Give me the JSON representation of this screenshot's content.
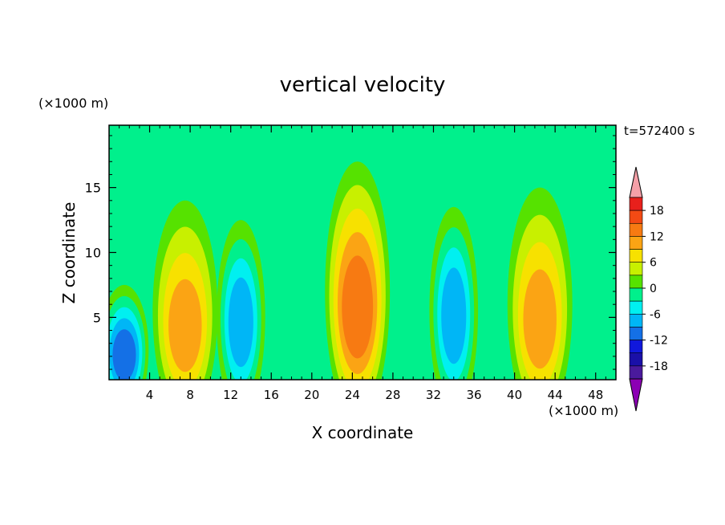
{
  "chart_data": {
    "type": "heatmap",
    "title": "vertical velocity",
    "xlabel": "X coordinate",
    "ylabel": "Z coordinate",
    "x_unit": "(×1000 m)",
    "y_unit": "(×1000 m)",
    "time_label": "t=572400 s",
    "xlim": [
      0,
      50
    ],
    "ylim": [
      0.2,
      19.8
    ],
    "x_ticks": [
      4,
      8,
      12,
      16,
      20,
      24,
      28,
      32,
      36,
      40,
      44,
      48
    ],
    "y_ticks": [
      5,
      10,
      15
    ],
    "grid": false,
    "colorbar": {
      "labels": [
        "18",
        "12",
        "6",
        "0",
        "-6",
        "-12",
        "-18"
      ],
      "levels": [
        21,
        18,
        15,
        12,
        9,
        6,
        3,
        0,
        -3,
        -6,
        -9,
        -12,
        -15,
        -18,
        -21
      ],
      "colors": [
        "#f5a0a8",
        "#e8201c",
        "#f34a14",
        "#f77a12",
        "#fba414",
        "#f7e100",
        "#c8f000",
        "#56e200",
        "#00f08c",
        "#00f0f0",
        "#00b6f6",
        "#1470e6",
        "#1018dc",
        "#1a10a8",
        "#4a1a9c",
        "#8c00b4"
      ]
    },
    "features": [
      {
        "kind": "updraft",
        "x": 7.5,
        "z": 4,
        "peak": 9
      },
      {
        "kind": "downdraft",
        "x": 1.5,
        "z": 2,
        "peak": -12
      },
      {
        "kind": "downdraft",
        "x": 13,
        "z": 4.5,
        "peak": -9
      },
      {
        "kind": "updraft",
        "x": 24.5,
        "z": 5.5,
        "peak": 12
      },
      {
        "kind": "downdraft",
        "x": 34,
        "z": 5,
        "peak": -9
      },
      {
        "kind": "updraft",
        "x": 42.5,
        "z": 4.5,
        "peak": 9
      }
    ]
  }
}
